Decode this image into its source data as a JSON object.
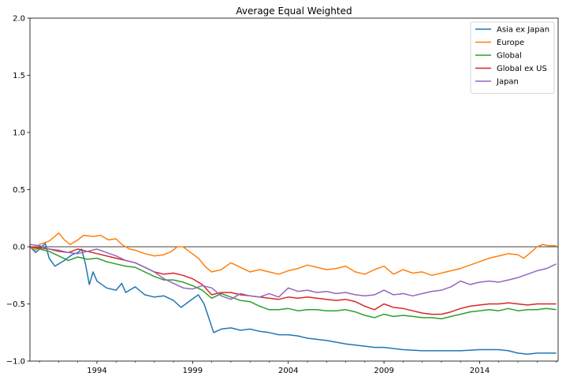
{
  "chart_data": {
    "type": "line",
    "title": "Average Equal Weighted",
    "xlabel": "",
    "ylabel": "",
    "xlim": [
      1990.5,
      2018.1
    ],
    "ylim": [
      -1.0,
      2.0
    ],
    "x_ticks": [
      1994,
      1999,
      2004,
      2009,
      2014
    ],
    "y_ticks": [
      -1.0,
      -0.5,
      0.0,
      0.5,
      1.0,
      1.5,
      2.0
    ],
    "y_tick_labels": [
      "−1.0",
      "−0.5",
      "0.0",
      "0.5",
      "1.0",
      "1.5",
      "2.0"
    ],
    "legend_position": "top-right",
    "zero_line": true,
    "series": [
      {
        "name": "Asia ex Japan",
        "color": "#1f77b4",
        "points": [
          [
            1990.5,
            0.0
          ],
          [
            1990.8,
            -0.05
          ],
          [
            1991.0,
            -0.02
          ],
          [
            1991.3,
            0.03
          ],
          [
            1991.5,
            -0.1
          ],
          [
            1991.8,
            -0.17
          ],
          [
            1992.0,
            -0.15
          ],
          [
            1992.3,
            -0.12
          ],
          [
            1992.7,
            -0.07
          ],
          [
            1993.0,
            -0.05
          ],
          [
            1993.2,
            -0.02
          ],
          [
            1993.4,
            -0.15
          ],
          [
            1993.6,
            -0.33
          ],
          [
            1993.8,
            -0.22
          ],
          [
            1994.0,
            -0.3
          ],
          [
            1994.5,
            -0.36
          ],
          [
            1995.0,
            -0.38
          ],
          [
            1995.3,
            -0.32
          ],
          [
            1995.5,
            -0.4
          ],
          [
            1996.0,
            -0.35
          ],
          [
            1996.5,
            -0.42
          ],
          [
            1997.0,
            -0.44
          ],
          [
            1997.5,
            -0.43
          ],
          [
            1998.0,
            -0.47
          ],
          [
            1998.4,
            -0.53
          ],
          [
            1998.8,
            -0.48
          ],
          [
            1999.3,
            -0.42
          ],
          [
            1999.6,
            -0.5
          ],
          [
            1999.9,
            -0.65
          ],
          [
            2000.1,
            -0.75
          ],
          [
            2000.5,
            -0.72
          ],
          [
            2001.0,
            -0.71
          ],
          [
            2001.5,
            -0.73
          ],
          [
            2002.0,
            -0.72
          ],
          [
            2002.5,
            -0.74
          ],
          [
            2003.0,
            -0.75
          ],
          [
            2003.5,
            -0.77
          ],
          [
            2004.0,
            -0.77
          ],
          [
            2004.5,
            -0.78
          ],
          [
            2005.0,
            -0.8
          ],
          [
            2006.0,
            -0.82
          ],
          [
            2007.0,
            -0.85
          ],
          [
            2008.0,
            -0.87
          ],
          [
            2008.5,
            -0.88
          ],
          [
            2009.0,
            -0.88
          ],
          [
            2009.5,
            -0.89
          ],
          [
            2010.0,
            -0.9
          ],
          [
            2011.0,
            -0.91
          ],
          [
            2012.0,
            -0.91
          ],
          [
            2013.0,
            -0.91
          ],
          [
            2014.0,
            -0.9
          ],
          [
            2015.0,
            -0.9
          ],
          [
            2015.5,
            -0.91
          ],
          [
            2016.0,
            -0.93
          ],
          [
            2016.5,
            -0.94
          ],
          [
            2017.0,
            -0.93
          ],
          [
            2018.0,
            -0.93
          ]
        ]
      },
      {
        "name": "Europe",
        "color": "#ff7f0e",
        "points": [
          [
            1990.5,
            0.0
          ],
          [
            1990.8,
            -0.03
          ],
          [
            1991.0,
            0.02
          ],
          [
            1991.5,
            0.05
          ],
          [
            1991.8,
            0.09
          ],
          [
            1992.0,
            0.12
          ],
          [
            1992.3,
            0.06
          ],
          [
            1992.6,
            0.02
          ],
          [
            1993.0,
            0.06
          ],
          [
            1993.3,
            0.1
          ],
          [
            1993.8,
            0.09
          ],
          [
            1994.2,
            0.1
          ],
          [
            1994.6,
            0.06
          ],
          [
            1995.0,
            0.07
          ],
          [
            1995.3,
            0.02
          ],
          [
            1995.7,
            -0.02
          ],
          [
            1996.0,
            -0.03
          ],
          [
            1996.5,
            -0.06
          ],
          [
            1997.0,
            -0.08
          ],
          [
            1997.5,
            -0.07
          ],
          [
            1997.9,
            -0.04
          ],
          [
            1998.2,
            0.0
          ],
          [
            1998.5,
            0.0
          ],
          [
            1998.9,
            -0.05
          ],
          [
            1999.3,
            -0.1
          ],
          [
            1999.7,
            -0.18
          ],
          [
            2000.0,
            -0.22
          ],
          [
            2000.5,
            -0.2
          ],
          [
            2001.0,
            -0.14
          ],
          [
            2001.5,
            -0.18
          ],
          [
            2002.0,
            -0.22
          ],
          [
            2002.5,
            -0.2
          ],
          [
            2003.0,
            -0.22
          ],
          [
            2003.5,
            -0.24
          ],
          [
            2004.0,
            -0.21
          ],
          [
            2004.5,
            -0.19
          ],
          [
            2005.0,
            -0.16
          ],
          [
            2005.5,
            -0.18
          ],
          [
            2006.0,
            -0.2
          ],
          [
            2006.5,
            -0.19
          ],
          [
            2007.0,
            -0.17
          ],
          [
            2007.5,
            -0.22
          ],
          [
            2008.0,
            -0.24
          ],
          [
            2008.5,
            -0.2
          ],
          [
            2009.0,
            -0.17
          ],
          [
            2009.5,
            -0.24
          ],
          [
            2010.0,
            -0.2
          ],
          [
            2010.5,
            -0.23
          ],
          [
            2011.0,
            -0.22
          ],
          [
            2011.5,
            -0.25
          ],
          [
            2012.0,
            -0.23
          ],
          [
            2012.5,
            -0.21
          ],
          [
            2013.0,
            -0.19
          ],
          [
            2013.5,
            -0.16
          ],
          [
            2014.0,
            -0.13
          ],
          [
            2014.5,
            -0.1
          ],
          [
            2015.0,
            -0.08
          ],
          [
            2015.5,
            -0.06
          ],
          [
            2016.0,
            -0.07
          ],
          [
            2016.3,
            -0.1
          ],
          [
            2016.6,
            -0.06
          ],
          [
            2017.0,
            0.0
          ],
          [
            2017.3,
            0.02
          ],
          [
            2017.6,
            0.01
          ],
          [
            2018.0,
            0.01
          ]
        ]
      },
      {
        "name": "Global",
        "color": "#2ca02c",
        "points": [
          [
            1990.5,
            0.0
          ],
          [
            1991.0,
            -0.02
          ],
          [
            1991.5,
            -0.04
          ],
          [
            1992.0,
            -0.08
          ],
          [
            1992.5,
            -0.12
          ],
          [
            1993.0,
            -0.09
          ],
          [
            1993.5,
            -0.11
          ],
          [
            1994.0,
            -0.1
          ],
          [
            1994.5,
            -0.13
          ],
          [
            1995.0,
            -0.15
          ],
          [
            1995.5,
            -0.17
          ],
          [
            1996.0,
            -0.18
          ],
          [
            1996.5,
            -0.22
          ],
          [
            1997.0,
            -0.26
          ],
          [
            1997.5,
            -0.29
          ],
          [
            1998.0,
            -0.29
          ],
          [
            1998.5,
            -0.31
          ],
          [
            1999.0,
            -0.34
          ],
          [
            1999.5,
            -0.38
          ],
          [
            2000.0,
            -0.45
          ],
          [
            2000.5,
            -0.41
          ],
          [
            2001.0,
            -0.44
          ],
          [
            2001.5,
            -0.47
          ],
          [
            2002.0,
            -0.48
          ],
          [
            2002.5,
            -0.52
          ],
          [
            2003.0,
            -0.55
          ],
          [
            2003.5,
            -0.55
          ],
          [
            2004.0,
            -0.54
          ],
          [
            2004.5,
            -0.56
          ],
          [
            2005.0,
            -0.55
          ],
          [
            2005.5,
            -0.55
          ],
          [
            2006.0,
            -0.56
          ],
          [
            2006.5,
            -0.56
          ],
          [
            2007.0,
            -0.55
          ],
          [
            2007.5,
            -0.57
          ],
          [
            2008.0,
            -0.6
          ],
          [
            2008.5,
            -0.62
          ],
          [
            2009.0,
            -0.59
          ],
          [
            2009.5,
            -0.61
          ],
          [
            2010.0,
            -0.6
          ],
          [
            2010.5,
            -0.61
          ],
          [
            2011.0,
            -0.62
          ],
          [
            2011.5,
            -0.62
          ],
          [
            2012.0,
            -0.63
          ],
          [
            2012.5,
            -0.61
          ],
          [
            2013.0,
            -0.59
          ],
          [
            2013.5,
            -0.57
          ],
          [
            2014.0,
            -0.56
          ],
          [
            2014.5,
            -0.55
          ],
          [
            2015.0,
            -0.56
          ],
          [
            2015.5,
            -0.54
          ],
          [
            2016.0,
            -0.56
          ],
          [
            2016.5,
            -0.55
          ],
          [
            2017.0,
            -0.55
          ],
          [
            2017.5,
            -0.54
          ],
          [
            2018.0,
            -0.55
          ]
        ]
      },
      {
        "name": "Global ex US",
        "color": "#d62728",
        "points": [
          [
            1990.5,
            0.0
          ],
          [
            1991.0,
            -0.01
          ],
          [
            1991.5,
            -0.02
          ],
          [
            1992.0,
            -0.04
          ],
          [
            1992.5,
            -0.05
          ],
          [
            1993.0,
            -0.02
          ],
          [
            1993.5,
            -0.04
          ],
          [
            1994.0,
            -0.06
          ],
          [
            1994.5,
            -0.08
          ],
          [
            1995.0,
            -0.1
          ],
          [
            1995.5,
            -0.12
          ],
          [
            1996.0,
            -0.14
          ],
          [
            1996.5,
            -0.18
          ],
          [
            1997.0,
            -0.22
          ],
          [
            1997.5,
            -0.24
          ],
          [
            1998.0,
            -0.23
          ],
          [
            1998.5,
            -0.25
          ],
          [
            1999.0,
            -0.28
          ],
          [
            1999.5,
            -0.33
          ],
          [
            2000.0,
            -0.42
          ],
          [
            2000.5,
            -0.4
          ],
          [
            2001.0,
            -0.4
          ],
          [
            2001.5,
            -0.42
          ],
          [
            2002.0,
            -0.43
          ],
          [
            2002.5,
            -0.44
          ],
          [
            2003.0,
            -0.45
          ],
          [
            2003.5,
            -0.46
          ],
          [
            2004.0,
            -0.44
          ],
          [
            2004.5,
            -0.45
          ],
          [
            2005.0,
            -0.44
          ],
          [
            2005.5,
            -0.45
          ],
          [
            2006.0,
            -0.46
          ],
          [
            2006.5,
            -0.47
          ],
          [
            2007.0,
            -0.46
          ],
          [
            2007.5,
            -0.48
          ],
          [
            2008.0,
            -0.52
          ],
          [
            2008.5,
            -0.55
          ],
          [
            2009.0,
            -0.5
          ],
          [
            2009.5,
            -0.53
          ],
          [
            2010.0,
            -0.54
          ],
          [
            2010.5,
            -0.56
          ],
          [
            2011.0,
            -0.58
          ],
          [
            2011.5,
            -0.59
          ],
          [
            2012.0,
            -0.59
          ],
          [
            2012.5,
            -0.57
          ],
          [
            2013.0,
            -0.54
          ],
          [
            2013.5,
            -0.52
          ],
          [
            2014.0,
            -0.51
          ],
          [
            2014.5,
            -0.5
          ],
          [
            2015.0,
            -0.5
          ],
          [
            2015.5,
            -0.49
          ],
          [
            2016.0,
            -0.5
          ],
          [
            2016.5,
            -0.51
          ],
          [
            2017.0,
            -0.5
          ],
          [
            2017.5,
            -0.5
          ],
          [
            2018.0,
            -0.5
          ]
        ]
      },
      {
        "name": "Japan",
        "color": "#9467bd",
        "points": [
          [
            1990.5,
            0.02
          ],
          [
            1991.0,
            0.01
          ],
          [
            1991.5,
            -0.02
          ],
          [
            1992.0,
            -0.03
          ],
          [
            1992.5,
            -0.05
          ],
          [
            1993.0,
            -0.06
          ],
          [
            1993.5,
            -0.04
          ],
          [
            1994.0,
            -0.02
          ],
          [
            1994.5,
            -0.05
          ],
          [
            1995.0,
            -0.08
          ],
          [
            1995.5,
            -0.12
          ],
          [
            1996.0,
            -0.14
          ],
          [
            1996.5,
            -0.18
          ],
          [
            1997.0,
            -0.22
          ],
          [
            1997.5,
            -0.28
          ],
          [
            1998.0,
            -0.32
          ],
          [
            1998.5,
            -0.36
          ],
          [
            1999.0,
            -0.37
          ],
          [
            1999.5,
            -0.34
          ],
          [
            2000.0,
            -0.36
          ],
          [
            2000.5,
            -0.43
          ],
          [
            2001.0,
            -0.46
          ],
          [
            2001.5,
            -0.41
          ],
          [
            2002.0,
            -0.43
          ],
          [
            2002.5,
            -0.44
          ],
          [
            2003.0,
            -0.41
          ],
          [
            2003.5,
            -0.44
          ],
          [
            2004.0,
            -0.36
          ],
          [
            2004.5,
            -0.39
          ],
          [
            2005.0,
            -0.38
          ],
          [
            2005.5,
            -0.4
          ],
          [
            2006.0,
            -0.39
          ],
          [
            2006.5,
            -0.41
          ],
          [
            2007.0,
            -0.4
          ],
          [
            2007.5,
            -0.42
          ],
          [
            2008.0,
            -0.43
          ],
          [
            2008.5,
            -0.42
          ],
          [
            2009.0,
            -0.38
          ],
          [
            2009.5,
            -0.42
          ],
          [
            2010.0,
            -0.41
          ],
          [
            2010.5,
            -0.43
          ],
          [
            2011.0,
            -0.41
          ],
          [
            2011.5,
            -0.39
          ],
          [
            2012.0,
            -0.38
          ],
          [
            2012.5,
            -0.35
          ],
          [
            2013.0,
            -0.3
          ],
          [
            2013.5,
            -0.33
          ],
          [
            2014.0,
            -0.31
          ],
          [
            2014.5,
            -0.3
          ],
          [
            2015.0,
            -0.31
          ],
          [
            2015.5,
            -0.29
          ],
          [
            2016.0,
            -0.27
          ],
          [
            2016.5,
            -0.24
          ],
          [
            2017.0,
            -0.21
          ],
          [
            2017.5,
            -0.19
          ],
          [
            2018.0,
            -0.15
          ]
        ]
      }
    ]
  }
}
